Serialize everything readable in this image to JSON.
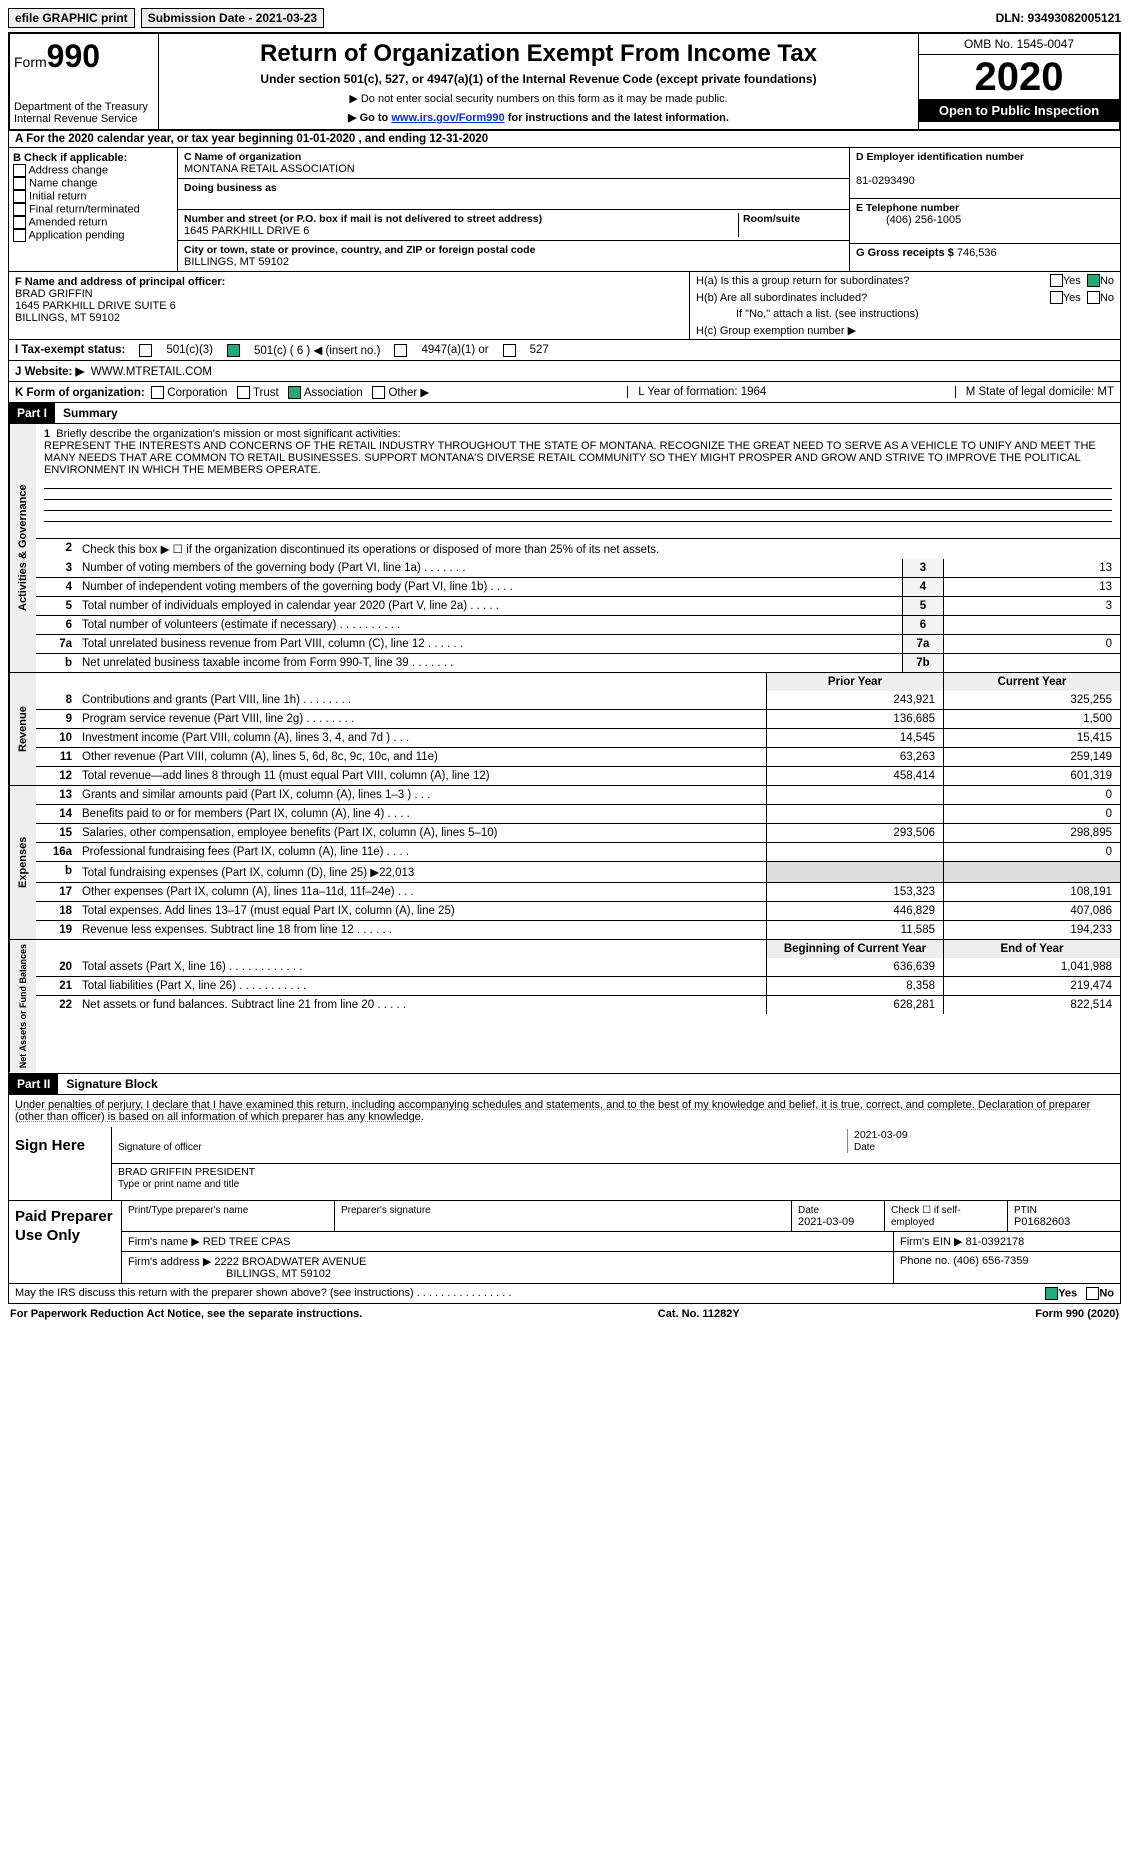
{
  "header": {
    "efile_btn": "efile GRAPHIC print",
    "submission_label": "Submission Date - 2021-03-23",
    "dln": "DLN: 93493082005121"
  },
  "top": {
    "form_label_small": "Form",
    "form_label_big": "990",
    "dept1": "Department of the Treasury",
    "dept2": "Internal Revenue Service",
    "title": "Return of Organization Exempt From Income Tax",
    "subtitle": "Under section 501(c), 527, or 4947(a)(1) of the Internal Revenue Code (except private foundations)",
    "note1": "▶ Do not enter social security numbers on this form as it may be made public.",
    "note2_pre": "▶ Go to ",
    "note2_link": "www.irs.gov/Form990",
    "note2_post": " for instructions and the latest information.",
    "omb": "OMB No. 1545-0047",
    "year": "2020",
    "open": "Open to Public Inspection"
  },
  "a": "A   For the 2020 calendar year, or tax year beginning 01-01-2020   , and ending 12-31-2020",
  "b": {
    "title": "B Check if applicable:",
    "opts": [
      "Address change",
      "Name change",
      "Initial return",
      "Final return/terminated",
      "Amended return",
      "Application pending"
    ]
  },
  "c": {
    "name_lbl": "C Name of organization",
    "name": "MONTANA RETAIL ASSOCIATION",
    "dba_lbl": "Doing business as",
    "dba": "",
    "street_lbl": "Number and street (or P.O. box if mail is not delivered to street address)",
    "street": "1645 PARKHILL DRIVE 6",
    "room_lbl": "Room/suite",
    "city_lbl": "City or town, state or province, country, and ZIP or foreign postal code",
    "city": "BILLINGS, MT  59102"
  },
  "d": {
    "lbl": "D Employer identification number",
    "val": "81-0293490"
  },
  "e": {
    "lbl": "E Telephone number",
    "val": "(406) 256-1005"
  },
  "g": {
    "lbl": "G Gross receipts $",
    "val": "746,536"
  },
  "f": {
    "lbl": "F  Name and address of principal officer:",
    "name": "BRAD GRIFFIN",
    "addr1": "1645 PARKHILL DRIVE SUITE 6",
    "addr2": "BILLINGS, MT  59102"
  },
  "h": {
    "ha": "H(a)  Is this a group return for subordinates?",
    "hb": "H(b)  Are all subordinates included?",
    "hb_note": "If \"No,\" attach a list. (see instructions)",
    "hc": "H(c)  Group exemption number ▶",
    "yes": "Yes",
    "no": "No"
  },
  "i": {
    "lbl": "I    Tax-exempt status:",
    "o1": "501(c)(3)",
    "o2": "501(c) ( 6 ) ◀ (insert no.)",
    "o3": "4947(a)(1) or",
    "o4": "527"
  },
  "j": {
    "lbl": "J   Website: ▶",
    "val": "WWW.MTRETAIL.COM"
  },
  "k": {
    "lbl": "K Form of organization:",
    "opts": [
      "Corporation",
      "Trust",
      "Association",
      "Other ▶"
    ],
    "l": "L Year of formation: 1964",
    "m": "M State of legal domicile: MT"
  },
  "parts": {
    "p1": "Part I",
    "p1_title": "Summary",
    "p2": "Part II",
    "p2_title": "Signature Block"
  },
  "summary": {
    "s1_lbl": "Briefly describe the organization's mission or most significant activities:",
    "s1_txt": "REPRESENT THE INTERESTS AND CONCERNS OF THE RETAIL INDUSTRY THROUGHOUT THE STATE OF MONTANA. RECOGNIZE THE GREAT NEED TO SERVE AS A VEHICLE TO UNIFY AND MEET THE MANY NEEDS THAT ARE COMMON TO RETAIL BUSINESSES. SUPPORT MONTANA'S DIVERSE RETAIL COMMUNITY SO THEY MIGHT PROSPER AND GROW AND STRIVE TO IMPROVE THE POLITICAL ENVIRONMENT IN WHICH THE MEMBERS OPERATE.",
    "s2": "Check this box ▶ ☐ if the organization discontinued its operations or disposed of more than 25% of its net assets.",
    "side_ag": "Activities & Governance",
    "side_rev": "Revenue",
    "side_exp": "Expenses",
    "side_na": "Net Assets or Fund Balances",
    "hdr_prior": "Prior Year",
    "hdr_curr": "Current Year",
    "hdr_boy": "Beginning of Current Year",
    "hdr_eoy": "End of Year",
    "rows_ag": [
      {
        "n": "3",
        "t": "Number of voting members of the governing body (Part VI, line 1a)   .    .    .    .    .    .    .",
        "box": "3",
        "v": "13"
      },
      {
        "n": "4",
        "t": "Number of independent voting members of the governing body (Part VI, line 1b)    .    .    .    .",
        "box": "4",
        "v": "13"
      },
      {
        "n": "5",
        "t": "Total number of individuals employed in calendar year 2020 (Part V, line 2a)  .    .    .    .    .",
        "box": "5",
        "v": "3"
      },
      {
        "n": "6",
        "t": "Total number of volunteers (estimate if necessary)   .    .    .    .    .    .    .    .    .    .",
        "box": "6",
        "v": ""
      },
      {
        "n": "7a",
        "t": "Total unrelated business revenue from Part VIII, column (C), line 12   .    .    .    .    .    .",
        "box": "7a",
        "v": "0"
      },
      {
        "n": "b",
        "t": "Net unrelated business taxable income from Form 990-T, line 39    .    .    .    .    .    .    .",
        "box": "7b",
        "v": ""
      }
    ],
    "rows_rev": [
      {
        "n": "8",
        "t": "Contributions and grants (Part VIII, line 1h)    .     .     .     .     .     .     .     .",
        "p": "243,921",
        "c": "325,255"
      },
      {
        "n": "9",
        "t": "Program service revenue (Part VIII, line 2g)   .     .     .     .     .     .     .     .",
        "p": "136,685",
        "c": "1,500"
      },
      {
        "n": "10",
        "t": "Investment income (Part VIII, column (A), lines 3, 4, and 7d )    .     .     .",
        "p": "14,545",
        "c": "15,415"
      },
      {
        "n": "11",
        "t": "Other revenue (Part VIII, column (A), lines 5, 6d, 8c, 9c, 10c, and 11e)",
        "p": "63,263",
        "c": "259,149"
      },
      {
        "n": "12",
        "t": "Total revenue—add lines 8 through 11 (must equal Part VIII, column (A), line 12)",
        "p": "458,414",
        "c": "601,319"
      }
    ],
    "rows_exp": [
      {
        "n": "13",
        "t": "Grants and similar amounts paid (Part IX, column (A), lines 1–3 )  .     .     .",
        "p": "",
        "c": "0"
      },
      {
        "n": "14",
        "t": "Benefits paid to or for members (Part IX, column (A), line 4)   .     .     .     .",
        "p": "",
        "c": "0"
      },
      {
        "n": "15",
        "t": "Salaries, other compensation, employee benefits (Part IX, column (A), lines 5–10)",
        "p": "293,506",
        "c": "298,895"
      },
      {
        "n": "16a",
        "t": "Professional fundraising fees (Part IX, column (A), line 11e)   .     .     .     .",
        "p": "",
        "c": "0"
      },
      {
        "n": "b",
        "t": "Total fundraising expenses (Part IX, column (D), line 25) ▶22,013",
        "p": "",
        "c": "",
        "shade": true
      },
      {
        "n": "17",
        "t": "Other expenses (Part IX, column (A), lines 11a–11d, 11f–24e)    .     .     .",
        "p": "153,323",
        "c": "108,191"
      },
      {
        "n": "18",
        "t": "Total expenses. Add lines 13–17 (must equal Part IX, column (A), line 25)",
        "p": "446,829",
        "c": "407,086"
      },
      {
        "n": "19",
        "t": "Revenue less expenses. Subtract line 18 from line 12  .     .     .     .     .     .",
        "p": "11,585",
        "c": "194,233"
      }
    ],
    "rows_na": [
      {
        "n": "20",
        "t": "Total assets (Part X, line 16)  .     .     .     .     .     .     .     .     .     .     .     .",
        "p": "636,639",
        "c": "1,041,988"
      },
      {
        "n": "21",
        "t": "Total liabilities (Part X, line 26)  .     .     .     .     .     .     .     .     .     .     .",
        "p": "8,358",
        "c": "219,474"
      },
      {
        "n": "22",
        "t": "Net assets or fund balances. Subtract line 21 from line 20  .     .     .     .     .",
        "p": "628,281",
        "c": "822,514"
      }
    ]
  },
  "sig": {
    "penalties": "Under penalties of perjury, I declare that I have examined this return, including accompanying schedules and statements, and to the best of my knowledge and belief, it is true, correct, and complete. Declaration of preparer (other than officer) is based on all information of which preparer has any knowledge.",
    "sign_here": "Sign Here",
    "sig_of_officer": "Signature of officer",
    "date_lbl": "Date",
    "sig_date": "2021-03-09",
    "officer_name": "BRAD GRIFFIN  PRESIDENT",
    "type_name": "Type or print name and title"
  },
  "paid": {
    "title": "Paid Preparer Use Only",
    "h_name": "Print/Type preparer's name",
    "h_sig": "Preparer's signature",
    "h_date": "Date",
    "date": "2021-03-09",
    "check_lbl": "Check ☐ if self-employed",
    "ptin_lbl": "PTIN",
    "ptin": "P01682603",
    "firm_name_lbl": "Firm's name      ▶",
    "firm_name": "RED TREE CPAS",
    "firm_ein_lbl": "Firm's EIN ▶",
    "firm_ein": "81-0392178",
    "firm_addr_lbl": "Firm's address ▶",
    "firm_addr1": "2222 BROADWATER AVENUE",
    "firm_addr2": "BILLINGS, MT  59102",
    "phone_lbl": "Phone no.",
    "phone": "(406) 656-7359"
  },
  "footer": {
    "discuss": "May the IRS discuss this return with the preparer shown above? (see instructions)   .    .    .    .    .    .    .    .    .    .    .    .    .    .    .    .",
    "yes": "Yes",
    "no": "No",
    "paperwork": "For Paperwork Reduction Act Notice, see the separate instructions.",
    "cat": "Cat. No. 11282Y",
    "formpg": "Form 990 (2020)"
  }
}
